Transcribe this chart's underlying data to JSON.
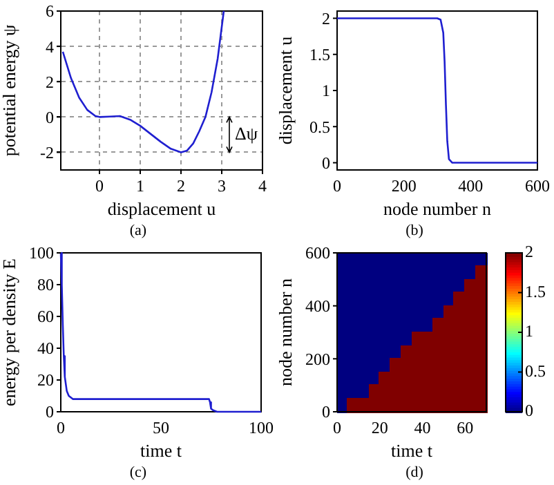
{
  "chart_data": [
    {
      "type": "line",
      "xlabel": "displacement u",
      "ylabel": "potential energy ψ",
      "x": [
        -0.9,
        -0.7,
        -0.5,
        -0.3,
        -0.1,
        0,
        0.25,
        0.5,
        0.75,
        1,
        1.25,
        1.5,
        1.75,
        2,
        2.15,
        2.3,
        2.45,
        2.6,
        2.75,
        2.9,
        3.05
      ],
      "series": [
        {
          "color": "#1f1fd0",
          "values": [
            3.7,
            2.2,
            1.1,
            0.4,
            0.05,
            0,
            0.02,
            0.05,
            -0.15,
            -0.5,
            -0.95,
            -1.4,
            -1.8,
            -2,
            -1.9,
            -1.5,
            -0.8,
            0,
            1.4,
            3.3,
            6
          ]
        }
      ],
      "xlim": [
        -0.95,
        4
      ],
      "xticks": [
        0,
        1,
        2,
        3,
        4
      ],
      "ylim": [
        -3,
        6
      ],
      "yticks": [
        -2,
        0,
        2,
        4,
        6
      ],
      "grid": true,
      "line_style": "solid",
      "annotations": [
        "(a)",
        "Δψ"
      ]
    },
    {
      "type": "line",
      "xlabel": "node number n",
      "ylabel": "displacement u",
      "x": [
        0,
        300,
        310,
        318,
        322,
        326,
        330,
        335,
        345,
        600
      ],
      "series": [
        {
          "color": "#1f1fd0",
          "values": [
            2,
            2,
            1.98,
            1.8,
            1.4,
            0.8,
            0.3,
            0.05,
            0,
            0
          ]
        }
      ],
      "xlim": [
        0,
        600
      ],
      "xticks": [
        0,
        200,
        400,
        600
      ],
      "ylim": [
        -0.1,
        2.1
      ],
      "yticks": [
        0,
        0.5,
        1,
        1.5,
        2
      ],
      "annotations": [
        "(b)"
      ]
    },
    {
      "type": "line",
      "xlabel": "time t",
      "ylabel": "energy per density E",
      "x": [
        0,
        0.5,
        1,
        1.5,
        2,
        3,
        4,
        6,
        10,
        74,
        74.5,
        75,
        76,
        78,
        100
      ],
      "series": [
        {
          "color": "#1f1fd0",
          "values": [
            100,
            80,
            55,
            35,
            22,
            13,
            10,
            8,
            8,
            8,
            6,
            2,
            1,
            0,
            0
          ]
        }
      ],
      "xlim": [
        0,
        100
      ],
      "xticks": [
        0,
        50,
        100
      ],
      "ylim": [
        0,
        100
      ],
      "yticks": [
        0,
        20,
        40,
        60,
        80,
        100
      ],
      "annotations": [
        "(c)"
      ]
    },
    {
      "type": "heatmap",
      "xlabel": "time t",
      "ylabel": "node number n",
      "x": [
        2.5,
        7.5,
        12.5,
        17.5,
        22.5,
        27.5,
        32.5,
        37.5,
        42.5,
        47.5,
        52.5,
        57.5,
        62.5,
        67.5
      ],
      "y": [
        575,
        525,
        475,
        425,
        375,
        325,
        275,
        225,
        175,
        125,
        75,
        25
      ],
      "cells": [
        [
          0,
          0,
          0,
          0,
          0,
          0,
          0,
          0,
          0,
          0,
          0,
          0,
          0,
          0
        ],
        [
          0,
          0,
          0,
          0,
          0,
          0,
          0,
          0,
          0,
          0,
          0,
          0,
          0,
          2
        ],
        [
          0,
          0,
          0,
          0,
          0,
          0,
          0,
          0,
          0,
          0,
          0,
          0,
          2,
          2
        ],
        [
          0,
          0,
          0,
          0,
          0,
          0,
          0,
          0,
          0,
          0,
          0,
          2,
          2,
          2
        ],
        [
          0,
          0,
          0,
          0,
          0,
          0,
          0,
          0,
          0,
          0,
          2,
          2,
          2,
          2
        ],
        [
          0,
          0,
          0,
          0,
          0,
          0,
          0,
          0,
          0,
          2,
          2,
          2,
          2,
          2
        ],
        [
          0,
          0,
          0,
          0,
          0,
          0,
          0,
          2,
          2,
          2,
          2,
          2,
          2,
          2
        ],
        [
          0,
          0,
          0,
          0,
          0,
          0,
          2,
          2,
          2,
          2,
          2,
          2,
          2,
          2
        ],
        [
          0,
          0,
          0,
          0,
          0,
          2,
          2,
          2,
          2,
          2,
          2,
          2,
          2,
          2
        ],
        [
          0,
          0,
          0,
          0,
          2,
          2,
          2,
          2,
          2,
          2,
          2,
          2,
          2,
          2
        ],
        [
          0,
          0,
          0,
          2,
          2,
          2,
          2,
          2,
          2,
          2,
          2,
          2,
          2,
          2
        ],
        [
          0,
          2,
          2,
          2,
          2,
          2,
          2,
          2,
          2,
          2,
          2,
          2,
          2,
          2
        ]
      ],
      "xlim": [
        0,
        70
      ],
      "xticks": [
        0,
        20,
        40,
        60
      ],
      "ylim": [
        0,
        600
      ],
      "yticks": [
        0,
        200,
        400,
        600
      ],
      "clim": [
        0,
        2
      ],
      "cticks": [
        0,
        0.5,
        1,
        1.5,
        2
      ],
      "annotations": [
        "(d)"
      ]
    }
  ]
}
